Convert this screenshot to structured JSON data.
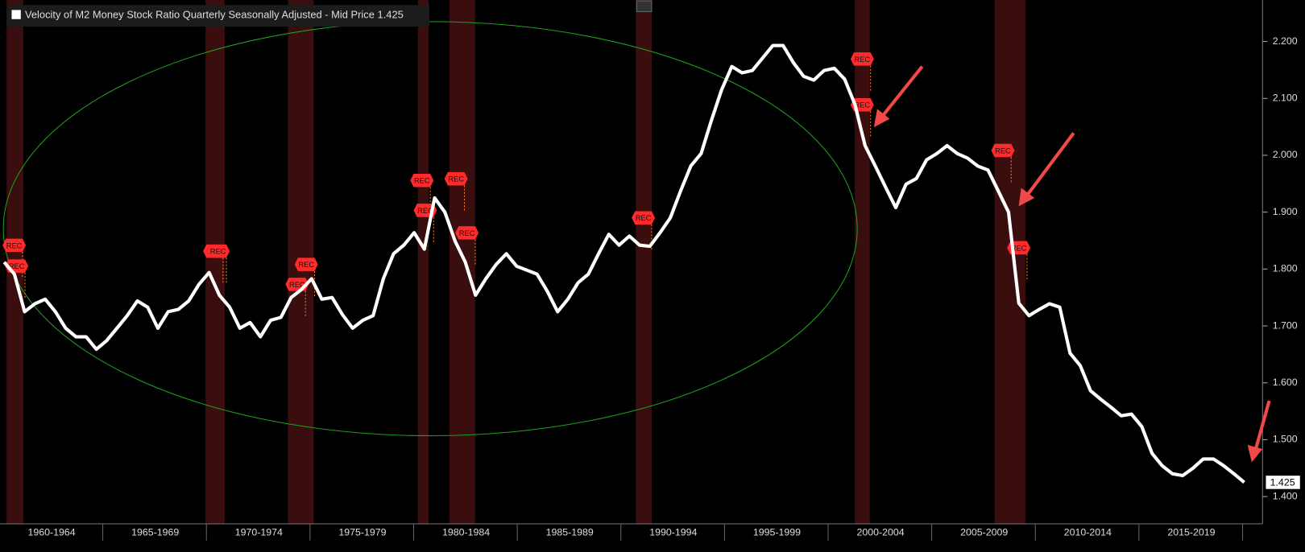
{
  "chart_data": {
    "type": "line",
    "x_axis_labels": [
      "1960-1964",
      "1965-1969",
      "1970-1974",
      "1975-1979",
      "1980-1984",
      "1985-1989",
      "1990-1994",
      "1995-1999",
      "2000-2004",
      "2005-2009",
      "2010-2014",
      "2015-2019"
    ],
    "series": [
      {
        "name": "Velocity of M2 Money Stock Ratio Quarterly Seasonally Adjusted - Mid Price",
        "color": "#ffffff",
        "values": [
          1.812,
          1.791,
          1.725,
          1.739,
          1.747,
          1.725,
          1.696,
          1.681,
          1.681,
          1.659,
          1.674,
          1.696,
          1.718,
          1.744,
          1.733,
          1.696,
          1.725,
          1.729,
          1.744,
          1.773,
          1.794,
          1.754,
          1.733,
          1.696,
          1.706,
          1.681,
          1.71,
          1.715,
          1.75,
          1.764,
          1.783,
          1.747,
          1.75,
          1.72,
          1.696,
          1.71,
          1.718,
          1.783,
          1.827,
          1.842,
          1.864,
          1.835,
          1.925,
          1.9,
          1.849,
          1.812,
          1.754,
          1.783,
          1.808,
          1.827,
          1.805,
          1.798,
          1.791,
          1.761,
          1.725,
          1.747,
          1.776,
          1.791,
          1.827,
          1.861,
          1.842,
          1.858,
          1.842,
          1.84,
          1.864,
          1.89,
          1.937,
          1.981,
          2.003,
          2.061,
          2.115,
          2.156,
          2.145,
          2.149,
          2.171,
          2.193,
          2.193,
          2.163,
          2.139,
          2.132,
          2.149,
          2.153,
          2.134,
          2.09,
          2.017,
          1.981,
          1.944,
          1.908,
          1.949,
          1.959,
          1.992,
          2.003,
          2.017,
          2.003,
          1.995,
          1.981,
          1.974,
          1.937,
          1.9,
          1.74,
          1.718,
          1.729,
          1.739,
          1.733,
          1.652,
          1.63,
          1.586,
          1.571,
          1.557,
          1.542,
          1.545,
          1.523,
          1.476,
          1.454,
          1.44,
          1.437,
          1.45,
          1.466,
          1.466,
          1.454,
          1.44,
          1.425
        ]
      }
    ],
    "ylim": [
      1.352,
      2.273
    ],
    "yticks": [
      {
        "value": 1.4,
        "label": "1.400"
      },
      {
        "value": 1.5,
        "label": "1.500"
      },
      {
        "value": 1.6,
        "label": "1.600"
      },
      {
        "value": 1.7,
        "label": "1.700"
      },
      {
        "value": 1.8,
        "label": "1.800"
      },
      {
        "value": 1.9,
        "label": "1.900"
      },
      {
        "value": 2.0,
        "label": "2.000"
      },
      {
        "value": 2.1,
        "label": "2.100"
      },
      {
        "value": 2.2,
        "label": "2.200"
      }
    ],
    "recession_flag_label": "REC"
  }
}
